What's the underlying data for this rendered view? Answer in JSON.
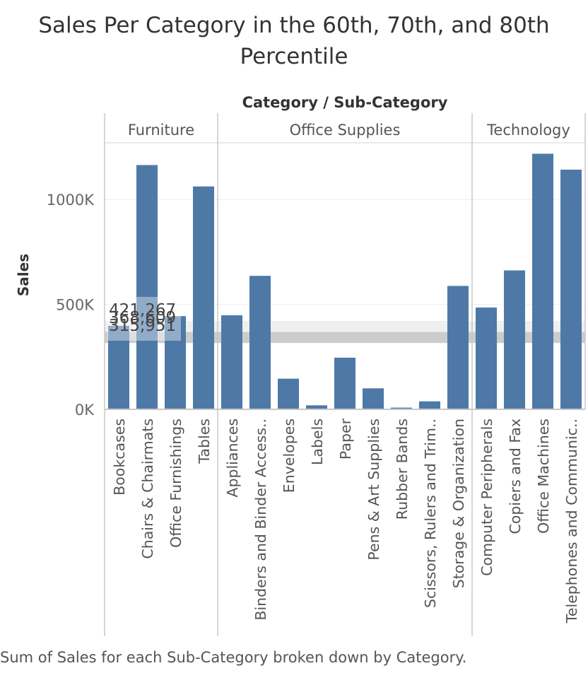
{
  "chart_data": {
    "type": "bar",
    "title": "Sales Per Category in the 60th, 70th, and 80th Percentile",
    "column_header": "Category / Sub-Category",
    "ylabel": "Sales",
    "ylim": [
      0,
      1270000
    ],
    "y_ticks": [
      {
        "value": 0,
        "label": "0K"
      },
      {
        "value": 500000,
        "label": "500K"
      },
      {
        "value": 1000000,
        "label": "1000K"
      }
    ],
    "groups": [
      {
        "name": "Furniture",
        "items": [
          {
            "label": "Bookcases",
            "value": 398000
          },
          {
            "label": "Chairs & Chairmats",
            "value": 1164000
          },
          {
            "label": "Office Furnishings",
            "value": 444000
          },
          {
            "label": "Tables",
            "value": 1062000
          }
        ]
      },
      {
        "name": "Office Supplies",
        "items": [
          {
            "label": "Appliances",
            "value": 448000
          },
          {
            "label": "Binders and Binder Access..",
            "value": 636000
          },
          {
            "label": "Envelopes",
            "value": 146000
          },
          {
            "label": "Labels",
            "value": 19000
          },
          {
            "label": "Paper",
            "value": 246000
          },
          {
            "label": "Pens & Art Supplies",
            "value": 100000
          },
          {
            "label": "Rubber Bands",
            "value": 8000
          },
          {
            "label": "Scissors, Rulers and Trim..",
            "value": 38000
          },
          {
            "label": "Storage & Organization",
            "value": 588000
          }
        ]
      },
      {
        "name": "Technology",
        "items": [
          {
            "label": "Computer Peripherals",
            "value": 485000
          },
          {
            "label": "Copiers and Fax",
            "value": 662000
          },
          {
            "label": "Office Machines",
            "value": 1218000
          },
          {
            "label": "Telephones and Communic..",
            "value": 1142000
          }
        ]
      }
    ],
    "reference_band": {
      "percentile_values": [
        {
          "percentile": "80th",
          "value": 421267,
          "label": "421,267"
        },
        {
          "percentile": "70th",
          "value": 368609,
          "label": "368,609"
        },
        {
          "percentile": "60th",
          "value": 315951,
          "label": "315,951"
        }
      ],
      "light_color": "#efefef",
      "dark_color": "#cccccc"
    },
    "bar_color": "#4e79a7",
    "grid": true,
    "caption": "Sum of Sales for each Sub-Category broken down by Category."
  }
}
